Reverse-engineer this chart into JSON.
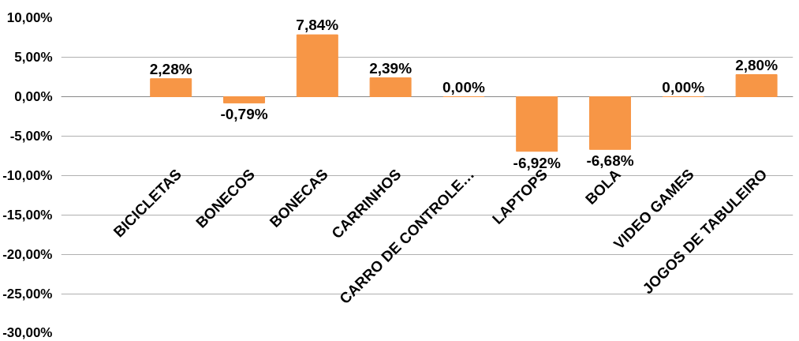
{
  "chart_data": {
    "type": "bar",
    "categories": [
      null,
      "BICICLETAS",
      "BONECOS",
      "BONECAS",
      "CARRINHOS",
      "CARRO DE CONTROLE…",
      "LAPTOPS",
      "BOLA",
      "VIDEO GAMES",
      "JOGOS DE TABULEIRO"
    ],
    "values": [
      null,
      2.28,
      -0.79,
      7.84,
      2.39,
      0.0,
      -6.92,
      -6.68,
      0.0,
      2.8
    ],
    "color": "#f79646",
    "value_labels": [
      null,
      "2,28%",
      "-0,79%",
      "7,84%",
      "2,39%",
      "0,00%",
      "-6,92%",
      "-6,68%",
      "0,00%",
      "2,80%"
    ],
    "ylim": [
      -30,
      10
    ],
    "yticks": [
      {
        "value": 10,
        "label": "10,00%"
      },
      {
        "value": 5,
        "label": "5,00%"
      },
      {
        "value": 0,
        "label": "0,00%"
      },
      {
        "value": -5,
        "label": "-5,00%"
      },
      {
        "value": -10,
        "label": "-10,00%"
      },
      {
        "value": -15,
        "label": "-15,00%"
      },
      {
        "value": -20,
        "label": "-20,00%"
      },
      {
        "value": -25,
        "label": "-25,00%"
      },
      {
        "value": -30,
        "label": "-30,00%"
      }
    ],
    "grid": "y"
  }
}
